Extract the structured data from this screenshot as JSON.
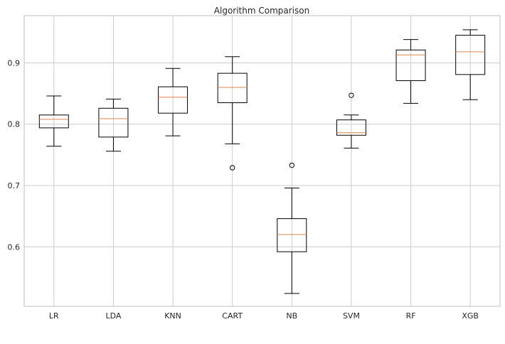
{
  "chart_data": {
    "type": "boxplot",
    "title": "Algorithm Comparison",
    "xlabel": "",
    "ylabel": "",
    "ylim": [
      0.503,
      0.977
    ],
    "yticks": [
      0.6,
      0.7,
      0.8,
      0.9
    ],
    "ytick_labels": [
      "0.6",
      "0.7",
      "0.8",
      "0.9"
    ],
    "grid": true,
    "median_color": "#dd8452",
    "categories": [
      "LR",
      "LDA",
      "KNN",
      "CART",
      "NB",
      "SVM",
      "RF",
      "XGB"
    ],
    "boxes": [
      {
        "label": "LR",
        "whisker_low": 0.764,
        "q1": 0.794,
        "median": 0.808,
        "q3": 0.815,
        "whisker_high": 0.846,
        "fliers": []
      },
      {
        "label": "LDA",
        "whisker_low": 0.756,
        "q1": 0.779,
        "median": 0.809,
        "q3": 0.826,
        "whisker_high": 0.841,
        "fliers": []
      },
      {
        "label": "KNN",
        "whisker_low": 0.781,
        "q1": 0.818,
        "median": 0.844,
        "q3": 0.861,
        "whisker_high": 0.891,
        "fliers": []
      },
      {
        "label": "CART",
        "whisker_low": 0.768,
        "q1": 0.835,
        "median": 0.86,
        "q3": 0.883,
        "whisker_high": 0.91,
        "fliers": [
          0.729
        ]
      },
      {
        "label": "NB",
        "whisker_low": 0.524,
        "q1": 0.592,
        "median": 0.62,
        "q3": 0.646,
        "whisker_high": 0.696,
        "fliers": [
          0.733
        ]
      },
      {
        "label": "SVM",
        "whisker_low": 0.761,
        "q1": 0.782,
        "median": 0.786,
        "q3": 0.807,
        "whisker_high": 0.815,
        "fliers": [
          0.847
        ]
      },
      {
        "label": "RF",
        "whisker_low": 0.834,
        "q1": 0.871,
        "median": 0.913,
        "q3": 0.921,
        "whisker_high": 0.938,
        "fliers": []
      },
      {
        "label": "XGB",
        "whisker_low": 0.84,
        "q1": 0.881,
        "median": 0.918,
        "q3": 0.945,
        "whisker_high": 0.954,
        "fliers": []
      }
    ]
  }
}
